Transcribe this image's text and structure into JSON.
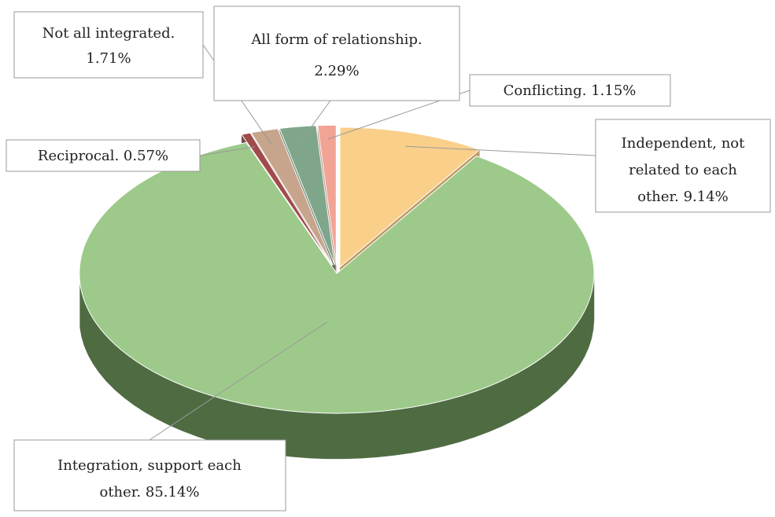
{
  "chart_data": {
    "type": "pie",
    "style": "3d-exploded",
    "title": "",
    "slices": [
      {
        "category": "Integration, support each other",
        "value": 85.14,
        "label_lines": [
          "Integration, support each",
          "other. 85.14%"
        ],
        "color": "#9dc98a",
        "side_color": "#4f6b42"
      },
      {
        "category": "Reciprocal",
        "value": 0.57,
        "label_lines": [
          "Reciprocal. 0.57%"
        ],
        "color": "#a14b4b",
        "side_color": "#5e2a2a"
      },
      {
        "category": "Not all integrated",
        "value": 1.71,
        "label_lines": [
          "Not all integrated.",
          "1.71%"
        ],
        "color": "#c7a48c",
        "side_color": "#7a6150"
      },
      {
        "category": "All form of relationship",
        "value": 2.29,
        "label_lines": [
          "All form of relationship.",
          "2.29%"
        ],
        "color": "#7fa68a",
        "side_color": "#4a6652"
      },
      {
        "category": "Conflicting",
        "value": 1.15,
        "label_lines": [
          "Conflicting. 1.15%"
        ],
        "color": "#f2a494",
        "side_color": "#a8665a"
      },
      {
        "category": "Independent, not related to each other",
        "value": 9.14,
        "label_lines": [
          "Independent, not",
          "related to each",
          "other. 9.14%"
        ],
        "color": "#f9cf8a",
        "side_color": "#b38a4a"
      }
    ]
  }
}
